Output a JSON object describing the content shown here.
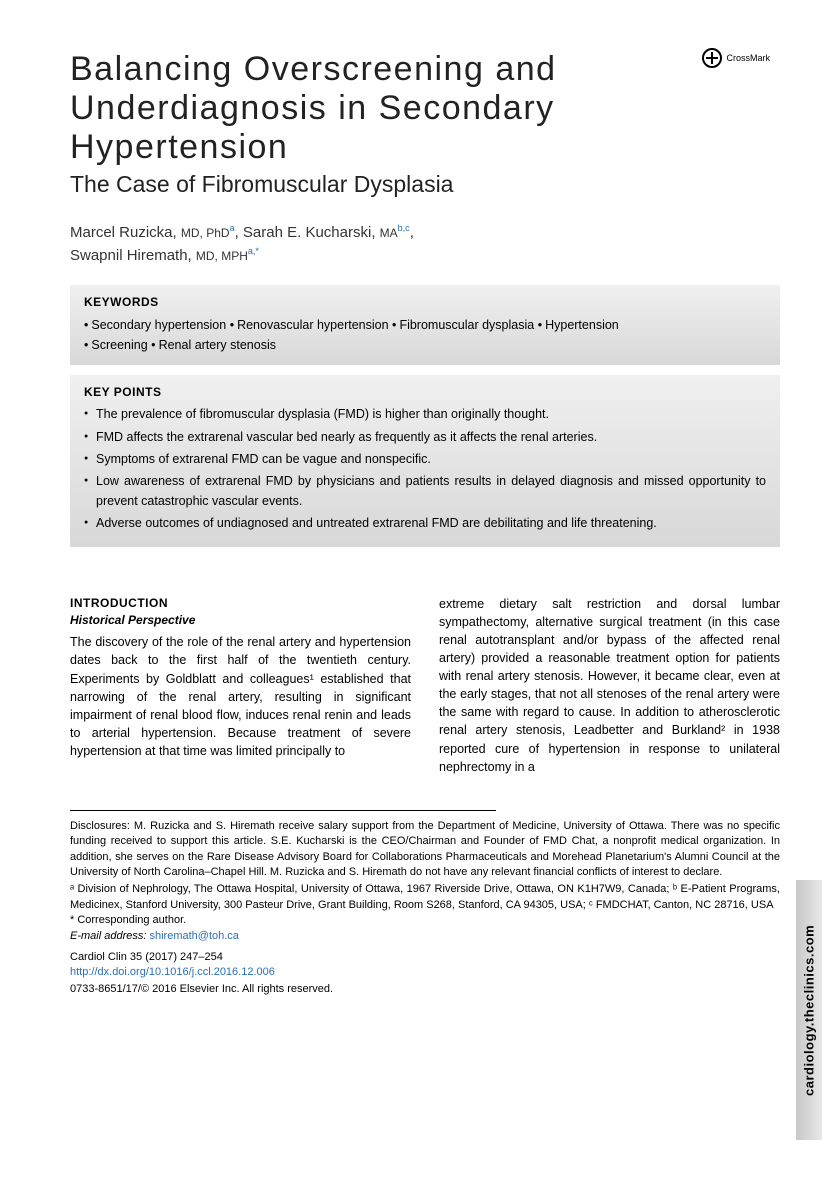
{
  "crossmark": "CrossMark",
  "title": "Balancing Overscreening and Underdiagnosis in Secondary Hypertension",
  "subtitle": "The Case of Fibromuscular Dysplasia",
  "authors": [
    {
      "name": "Marcel Ruzicka",
      "degrees": "MD, PhD",
      "affil": "a"
    },
    {
      "name": "Sarah E. Kucharski",
      "degrees": "MA",
      "affil": "b,c"
    },
    {
      "name": "Swapnil Hiremath",
      "degrees": "MD, MPH",
      "affil": "a,*"
    }
  ],
  "keywords_label": "KEYWORDS",
  "keywords": [
    "Secondary hypertension",
    "Renovascular hypertension",
    "Fibromuscular dysplasia",
    "Hypertension",
    "Screening",
    "Renal artery stenosis"
  ],
  "keypoints_label": "KEY POINTS",
  "keypoints": [
    "The prevalence of fibromuscular dysplasia (FMD) is higher than originally thought.",
    "FMD affects the extrarenal vascular bed nearly as frequently as it affects the renal arteries.",
    "Symptoms of extrarenal FMD can be vague and nonspecific.",
    "Low awareness of extrarenal FMD by physicians and patients results in delayed diagnosis and missed opportunity to prevent catastrophic vascular events.",
    "Adverse outcomes of undiagnosed and untreated extrarenal FMD are debilitating and life threatening."
  ],
  "intro_head": "INTRODUCTION",
  "intro_sub": "Historical Perspective",
  "col1": "The discovery of the role of the renal artery and hypertension dates back to the first half of the twentieth century. Experiments by Goldblatt and colleagues¹ established that narrowing of the renal artery, resulting in significant impairment of renal blood flow, induces renal renin and leads to arterial hypertension. Because treatment of severe hypertension at that time was limited principally to",
  "col2": "extreme dietary salt restriction and dorsal lumbar sympathectomy, alternative surgical treatment (in this case renal autotransplant and/or bypass of the affected renal artery) provided a reasonable treatment option for patients with renal artery stenosis. However, it became clear, even at the early stages, that not all stenoses of the renal artery were the same with regard to cause. In addition to atherosclerotic renal artery stenosis, Leadbetter and Burkland² in 1938 reported cure of hypertension in response to unilateral nephrectomy in a",
  "disclosures": "Disclosures: M. Ruzicka and S. Hiremath receive salary support from the Department of Medicine, University of Ottawa. There was no specific funding received to support this article. S.E. Kucharski is the CEO/Chairman and Founder of FMD Chat, a nonprofit medical organization. In addition, she serves on the Rare Disease Advisory Board for Collaborations Pharmaceuticals and Morehead Planetarium's Alumni Council at the University of North Carolina–Chapel Hill. M. Ruzicka and S. Hiremath do not have any relevant financial conflicts of interest to declare.",
  "affiliations": "ᵃ Division of Nephrology, The Ottawa Hospital, University of Ottawa, 1967 Riverside Drive, Ottawa, ON K1H7W9, Canada; ᵇ E-Patient Programs, Medicinex, Stanford University, 300 Pasteur Drive, Grant Building, Room S268, Stanford, CA 94305, USA; ᶜ FMDCHAT, Canton, NC 28716, USA",
  "corresponding": "* Corresponding author.",
  "email_label": "E-mail address:",
  "email": "shiremath@toh.ca",
  "journal": "Cardiol Clin 35 (2017) 247–254",
  "doi": "http://dx.doi.org/10.1016/j.ccl.2016.12.006",
  "copyright": "0733-8651/17/© 2016 Elsevier Inc. All rights reserved.",
  "side_url": "cardiology.theclinics.com"
}
